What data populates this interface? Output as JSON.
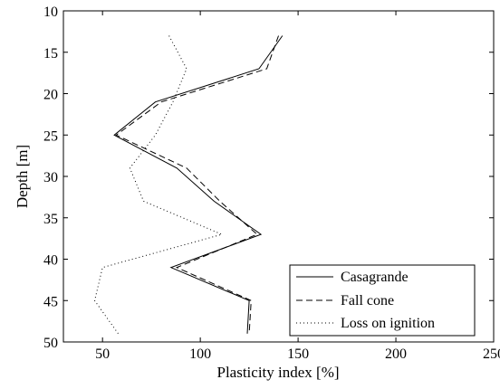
{
  "chart_data": {
    "type": "line",
    "title": "",
    "xlabel": "Plasticity index [%]",
    "ylabel": "Depth [m]",
    "xlim": [
      30,
      250
    ],
    "ylim": [
      50,
      10
    ],
    "y_inverted": true,
    "xticks": [
      50,
      100,
      150,
      200,
      250
    ],
    "yticks": [
      10,
      15,
      20,
      25,
      30,
      35,
      40,
      45,
      50
    ],
    "grid": false,
    "legend_position": "bottom-right",
    "series": [
      {
        "name": "Casagrande",
        "style": "solid",
        "points": [
          [
            142,
            13
          ],
          [
            130,
            17
          ],
          [
            77,
            21
          ],
          [
            56,
            25
          ],
          [
            88,
            29
          ],
          [
            107,
            33
          ],
          [
            131,
            37
          ],
          [
            85,
            41
          ],
          [
            125,
            45
          ],
          [
            124,
            49
          ]
        ]
      },
      {
        "name": "Fall cone",
        "style": "dashed",
        "points": [
          [
            140,
            13
          ],
          [
            134,
            17
          ],
          [
            80,
            21
          ],
          [
            57,
            25
          ],
          [
            93,
            29
          ],
          [
            110,
            33
          ],
          [
            129,
            37
          ],
          [
            88,
            41
          ],
          [
            126,
            45
          ],
          [
            125,
            49
          ]
        ]
      },
      {
        "name": "Loss on ignition",
        "style": "dotted",
        "points": [
          [
            84,
            13
          ],
          [
            93,
            17
          ],
          [
            86,
            21
          ],
          [
            77,
            25
          ],
          [
            64,
            29
          ],
          [
            71,
            33
          ],
          [
            111,
            37
          ],
          [
            50,
            41
          ],
          [
            46,
            45
          ],
          [
            58,
            49
          ]
        ]
      }
    ]
  }
}
